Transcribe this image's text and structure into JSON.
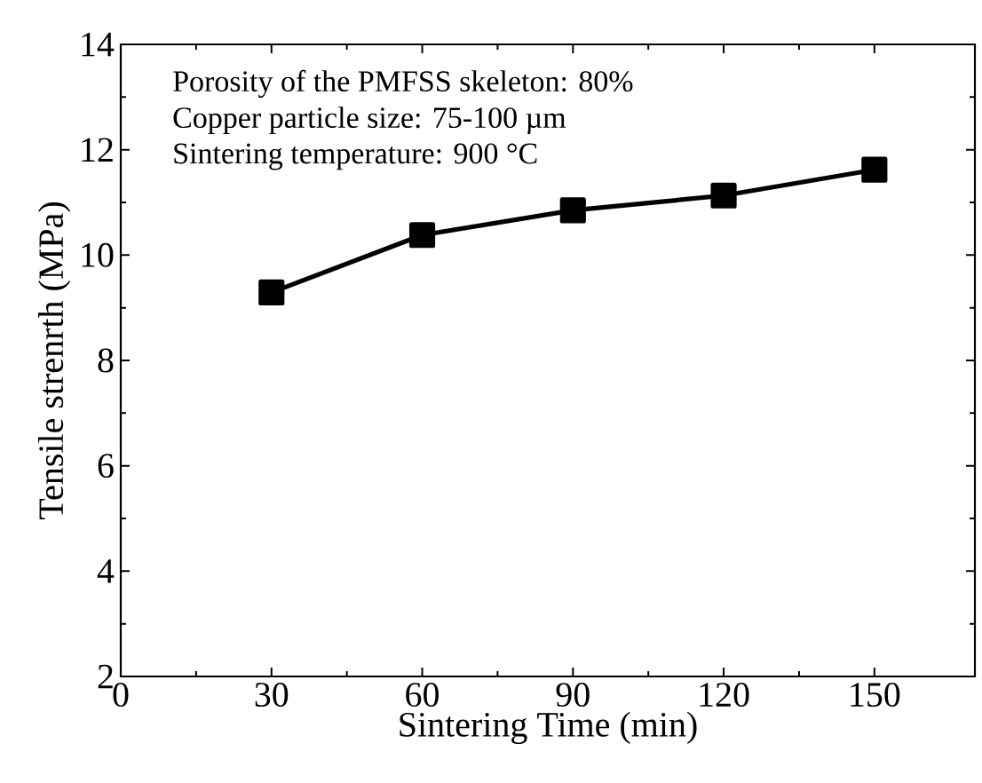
{
  "chart_data": {
    "type": "line",
    "xlabel": "Sintering Time (min)",
    "ylabel": "Tensile strenrth (MPa)",
    "x": [
      30,
      60,
      90,
      120,
      150
    ],
    "series": [
      {
        "color": "#000000",
        "values": [
          9.29,
          10.38,
          10.85,
          11.13,
          11.62
        ]
      }
    ],
    "xlim": [
      0,
      170
    ],
    "xticks": [
      0,
      30,
      60,
      90,
      120,
      150
    ],
    "ylim": [
      2,
      14
    ],
    "yticks": [
      2,
      4,
      6,
      8,
      10,
      12,
      14
    ],
    "marker": "square",
    "line_style": "solid",
    "grid": false,
    "annotations": [
      "Porosity of the PMFSS skeleton: 80%",
      "Copper particle size: 75-100 µm",
      "Sintering temperature: 900 °C"
    ]
  }
}
